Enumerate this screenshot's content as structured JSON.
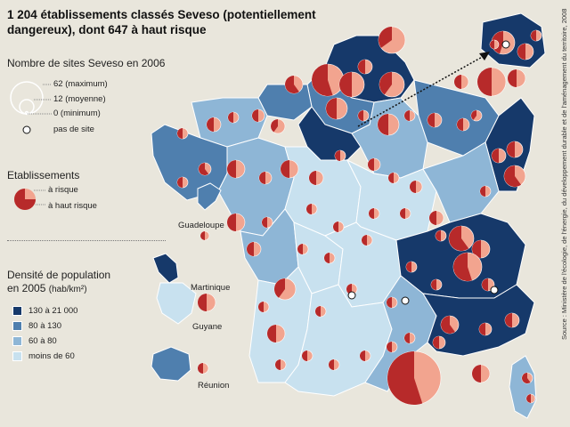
{
  "title": "1 204 établissements classés Seveso (potentiellement dangereux), dont 647 à haut risque",
  "size_legend": {
    "heading": "Nombre de sites Seveso en 2006",
    "items": [
      {
        "label": "62 (maximum)",
        "value": 62
      },
      {
        "label": "12 (moyenne)",
        "value": 12
      },
      {
        "label": "0 (minimum)",
        "value": 0
      }
    ],
    "no_site_label": "pas de site"
  },
  "etablissements_legend": {
    "heading": "Etablissements",
    "items": [
      {
        "label": "à risque",
        "color": "#f2a48f"
      },
      {
        "label": "à haut risque",
        "color": "#b72a2a"
      }
    ]
  },
  "density_legend": {
    "heading": "Densité de population",
    "subheading": "en 2005",
    "unit": "(hab/km²)",
    "classes": [
      {
        "label": "130 à 21 000",
        "color": "#16396a"
      },
      {
        "label": "80 à 130",
        "color": "#4f7fae"
      },
      {
        "label": "60 à 80",
        "color": "#8eb6d6"
      },
      {
        "label": "moins de 60",
        "color": "#c8e1ef"
      }
    ]
  },
  "outremer": {
    "guadeloupe": "Guadeloupe",
    "martinique": "Martinique",
    "guyane": "Guyane",
    "reunion": "Réunion"
  },
  "source": "Source : Ministère de l'écologie, de l'énergie, du développement durable et de l'aménagement du territoire, 2008",
  "colors": {
    "background": "#e9e6dc",
    "border": "#ffffff",
    "risk": "#f2a48f",
    "high_risk": "#b72a2a"
  }
}
